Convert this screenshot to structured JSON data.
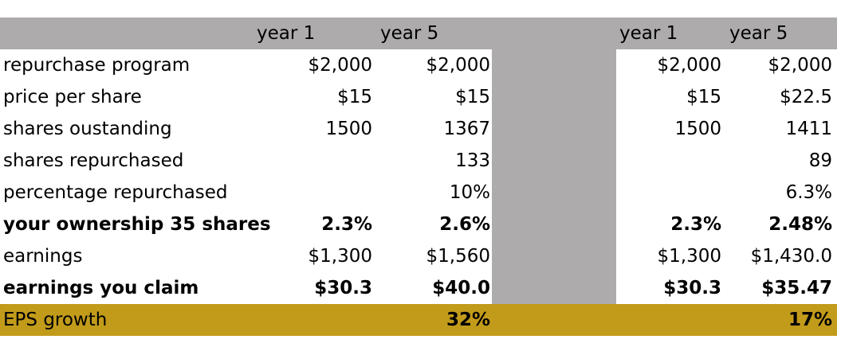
{
  "headers": {
    "scenario_a_year1": "year 1",
    "scenario_a_year5": "year 5",
    "scenario_b_year1": "year 1",
    "scenario_b_year5": "year 5"
  },
  "rows": [
    {
      "label": "repurchase program",
      "a_y1": "$2,000",
      "a_y5": "$2,000",
      "b_y1": "$2,000",
      "b_y5": "$2,000",
      "bold": false
    },
    {
      "label": "price per share",
      "a_y1": "$15",
      "a_y5": "$15",
      "b_y1": "$15",
      "b_y5": "$22.5",
      "bold": false
    },
    {
      "label": "shares oustanding",
      "a_y1": "1500",
      "a_y5": "1367",
      "b_y1": "1500",
      "b_y5": "1411",
      "bold": false
    },
    {
      "label": "shares repurchased",
      "a_y1": "",
      "a_y5": "133",
      "b_y1": "",
      "b_y5": "89",
      "bold": false
    },
    {
      "label": "percentage repurchased",
      "a_y1": "",
      "a_y5": "10%",
      "b_y1": "",
      "b_y5": "6.3%",
      "bold": false
    },
    {
      "label": "your ownership 35 shares",
      "a_y1": "2.3%",
      "a_y5": "2.6%",
      "b_y1": "2.3%",
      "b_y5": "2.48%",
      "bold": true
    },
    {
      "label": "earnings",
      "a_y1": "$1,300",
      "a_y5": "$1,560",
      "b_y1": "$1,300",
      "b_y5": "$1,430.0",
      "bold": false
    },
    {
      "label": "earnings you claim",
      "a_y1": "$30.3",
      "a_y5": "$40.0",
      "b_y1": "$30.3",
      "b_y5": "$35.47",
      "bold": true
    }
  ],
  "eps": {
    "label": "EPS growth",
    "a_growth": "32%",
    "b_growth": "17%"
  },
  "colors": {
    "header_bg": "#adabab",
    "separator_bg": "#adabab",
    "eps_bg": "#c29b1b"
  }
}
